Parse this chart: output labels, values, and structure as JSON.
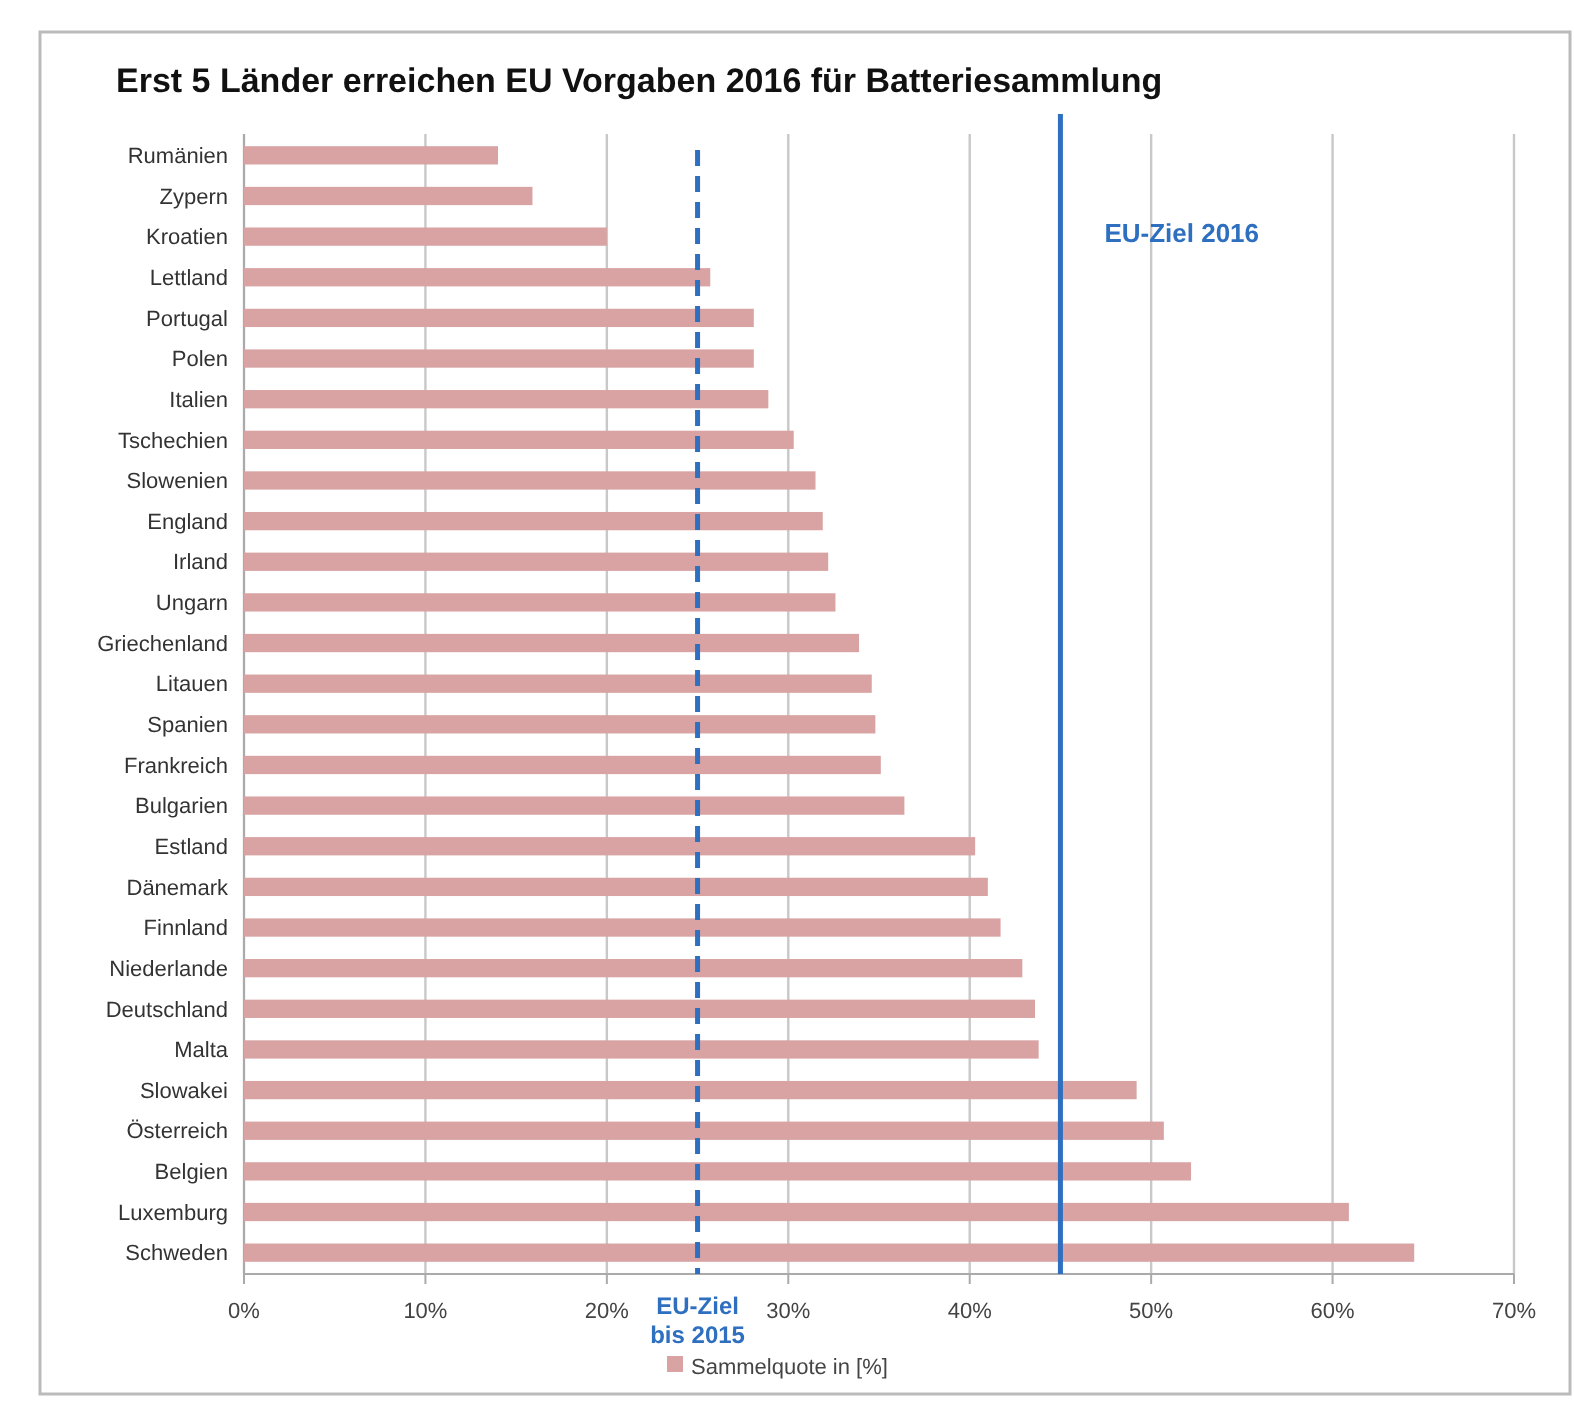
{
  "chart_data": {
    "type": "bar",
    "orientation": "horizontal",
    "title": "Erst 5 Länder erreichen EU Vorgaben 2016 für Batteriesammlung",
    "categories": [
      "Rumänien",
      "Zypern",
      "Kroatien",
      "Lettland",
      "Portugal",
      "Polen",
      "Italien",
      "Tschechien",
      "Slowenien",
      "England",
      "Irland",
      "Ungarn",
      "Griechenland",
      "Litauen",
      "Spanien",
      "Frankreich",
      "Bulgarien",
      "Estland",
      "Dänemark",
      "Finnland",
      "Niederlande",
      "Deutschland",
      "Malta",
      "Slowakei",
      "Österreich",
      "Belgien",
      "Luxemburg",
      "Schweden"
    ],
    "series": [
      {
        "name": "Sammelquote in [%]",
        "color": "#d9a3a3",
        "values": [
          14,
          15.9,
          20,
          25.7,
          28.1,
          28.1,
          28.9,
          30.3,
          31.5,
          31.9,
          32.2,
          32.6,
          33.9,
          34.6,
          34.8,
          35.1,
          36.4,
          40.3,
          41,
          41.7,
          42.9,
          43.6,
          43.8,
          49.2,
          50.7,
          52.2,
          60.9,
          64.5
        ]
      }
    ],
    "xlim": [
      0,
      70
    ],
    "xticks": [
      {
        "value": 0,
        "label": "0%"
      },
      {
        "value": 10,
        "label": "10%"
      },
      {
        "value": 20,
        "label": "20%"
      },
      {
        "value": 30,
        "label": "30%"
      },
      {
        "value": 40,
        "label": "40%"
      },
      {
        "value": 50,
        "label": "50%"
      },
      {
        "value": 60,
        "label": "60%"
      },
      {
        "value": 70,
        "label": "70%"
      }
    ],
    "grid": "x",
    "legend": "bottom",
    "ref_lines": [
      {
        "axis": "x",
        "value": 25,
        "label": "EU-Ziel bis 2015",
        "color": "#2e6fc0",
        "line_style": "dashed"
      },
      {
        "axis": "x",
        "value": 45,
        "label": "EU-Ziel 2016",
        "color": "#2e6fc0",
        "line_style": "solid"
      }
    ]
  }
}
